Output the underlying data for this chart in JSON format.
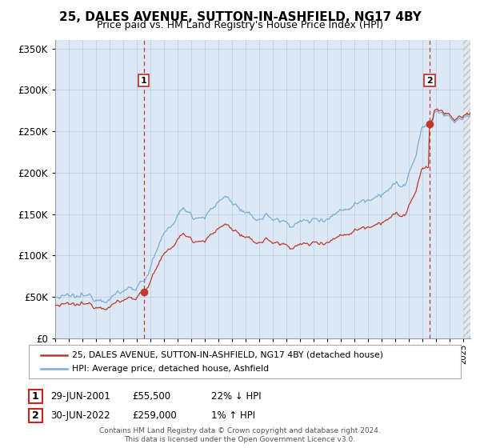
{
  "title": "25, DALES AVENUE, SUTTON-IN-ASHFIELD, NG17 4BY",
  "subtitle": "Price paid vs. HM Land Registry's House Price Index (HPI)",
  "sale1_date": 2001.5,
  "sale1_price": 55500,
  "sale1_label": "1",
  "sale1_text": "29-JUN-2001",
  "sale1_price_text": "£55,500",
  "sale1_hpi_text": "22% ↓ HPI",
  "sale2_date": 2022.5,
  "sale2_price": 259000,
  "sale2_label": "2",
  "sale2_text": "30-JUN-2022",
  "sale2_price_text": "£259,000",
  "sale2_hpi_text": "1% ↑ HPI",
  "legend1": "25, DALES AVENUE, SUTTON-IN-ASHFIELD, NG17 4BY (detached house)",
  "legend2": "HPI: Average price, detached house, Ashfield",
  "footer1": "Contains HM Land Registry data © Crown copyright and database right 2024.",
  "footer2": "This data is licensed under the Open Government Licence v3.0.",
  "hpi_color": "#7dadd4",
  "price_color": "#c0392b",
  "bg_color": "#dce8f5",
  "grid_color": "#b8cede",
  "vline_color": "#c0392b",
  "ylim_max": 360000,
  "xmin": 1995.0,
  "xmax": 2025.5
}
